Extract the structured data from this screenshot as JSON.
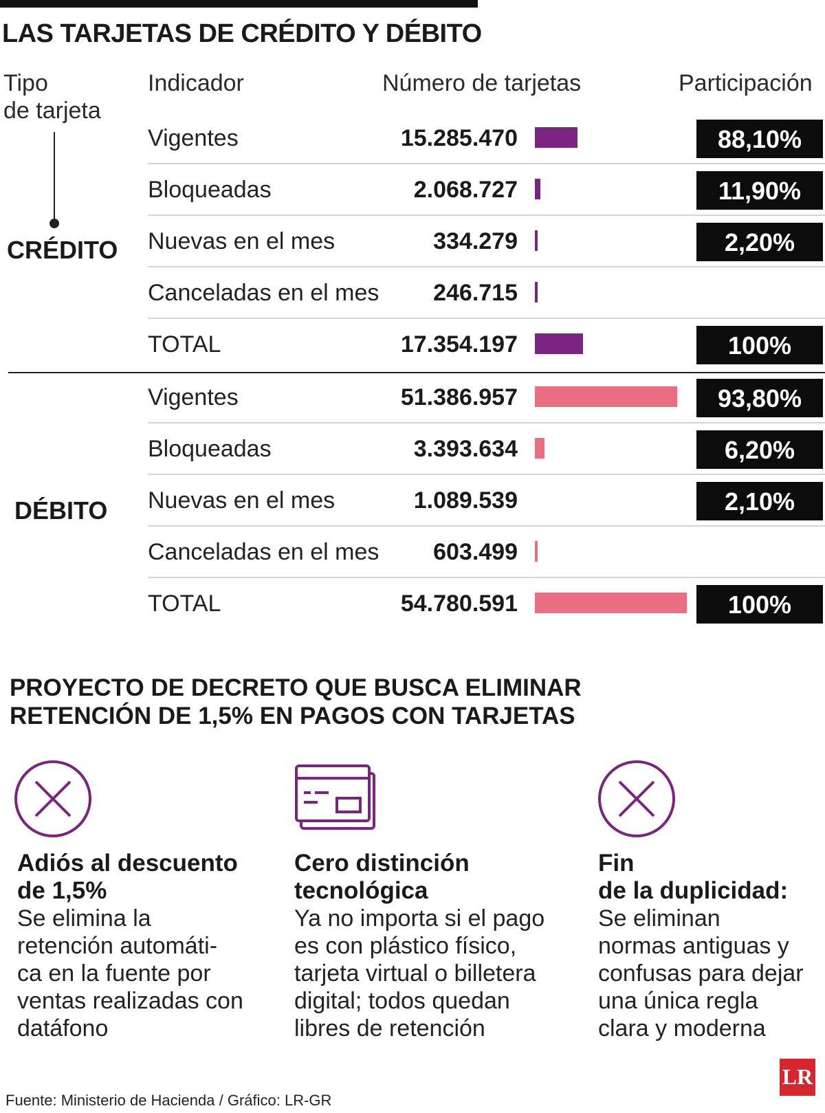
{
  "title": "LAS TARJETAS DE CRÉDITO Y DÉBITO",
  "headers": {
    "type_line1": "Tipo",
    "type_line2": "de tarjeta",
    "indicator": "Indicador",
    "count": "Número de tarjetas",
    "share": "Participación"
  },
  "types": {
    "credit": "CRÉDITO",
    "debit": "DÉBITO"
  },
  "colors": {
    "credit_bar": "#7b2380",
    "debit_bar": "#e96f80",
    "badge_bg": "#0c0c0c"
  },
  "chart_data": {
    "type": "table",
    "x_scale_max": 51386957,
    "groups": [
      {
        "name": "CRÉDITO",
        "rows": [
          {
            "indicator": "Vigentes",
            "value": 15285470,
            "value_label": "15.285.470",
            "share": "88,10%"
          },
          {
            "indicator": "Bloqueadas",
            "value": 2068727,
            "value_label": "2.068.727",
            "share": "11,90%"
          },
          {
            "indicator": "Nuevas en el mes",
            "value": 334279,
            "value_label": "334.279",
            "share": "2,20%"
          },
          {
            "indicator": "Canceladas en el mes",
            "value": 246715,
            "value_label": "246.715",
            "share": ""
          },
          {
            "indicator": "TOTAL",
            "value": 17354197,
            "value_label": "17.354.197",
            "share": "100%"
          }
        ]
      },
      {
        "name": "DÉBITO",
        "rows": [
          {
            "indicator": "Vigentes",
            "value": 51386957,
            "value_label": "51.386.957",
            "share": "93,80%"
          },
          {
            "indicator": "Bloqueadas",
            "value": 3393634,
            "value_label": "3.393.634",
            "share": "6,20%"
          },
          {
            "indicator": "Nuevas en el mes",
            "value": 1089539,
            "value_label": "1.089.539",
            "share": "2,10%"
          },
          {
            "indicator": "Canceladas en el mes",
            "value": 603499,
            "value_label": "603.499",
            "share": ""
          },
          {
            "indicator": "TOTAL",
            "value": 54780591,
            "value_label": "54.780.591",
            "share": "100%"
          }
        ]
      }
    ]
  },
  "decree": {
    "title_line1": "PROYECTO DE DECRETO QUE BUSCA ELIMINAR",
    "title_line2": "RETENCIÓN DE 1,5% EN PAGOS CON TARJETAS",
    "cards": [
      {
        "icon": "x-circle-icon",
        "title_line1": "Adiós al descuento",
        "title_line2": "de 1,5%",
        "body": [
          "Se elimina la",
          "retención automáti-",
          "ca en la fuente por",
          "ventas realizadas con",
          "datáfono"
        ]
      },
      {
        "icon": "credit-card-icon",
        "title_line1": "Cero distinción",
        "title_line2": "tecnológica",
        "body": [
          "Ya no importa si el pago",
          "es con plástico físico,",
          "tarjeta virtual o billetera",
          "digital; todos quedan",
          "libres de retención"
        ]
      },
      {
        "icon": "x-circle-icon",
        "title_line1": "Fin",
        "title_line2": "de la duplicidad:",
        "body": [
          "Se eliminan",
          "normas antiguas y",
          "confusas para dejar",
          "una única regla",
          "clara y moderna"
        ]
      }
    ]
  },
  "source": "Fuente: Ministerio de Hacienda / Gráfico: LR-GR",
  "logo_text": "LR"
}
